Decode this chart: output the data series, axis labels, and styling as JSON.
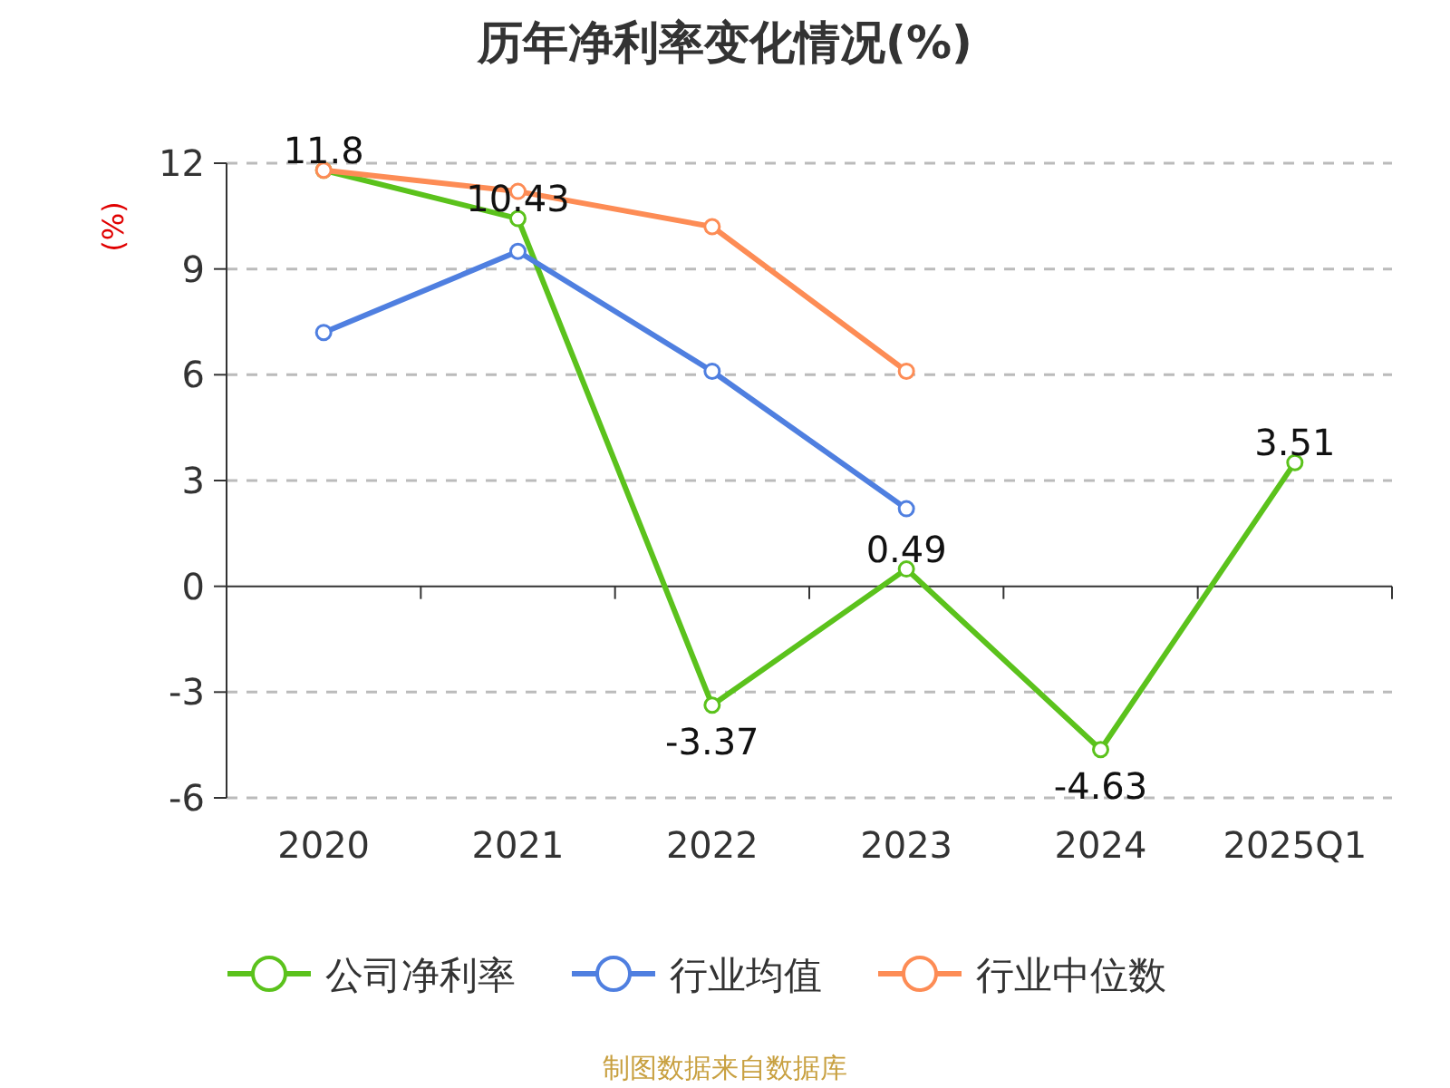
{
  "chart_data": {
    "type": "line",
    "title": "历年净利率变化情况(%)",
    "ylabel": "(%)",
    "categories": [
      "2020",
      "2021",
      "2022",
      "2023",
      "2024",
      "2025Q1"
    ],
    "series": [
      {
        "name": "公司净利率",
        "color": "#5bc21c",
        "values": [
          11.8,
          10.43,
          -3.37,
          0.49,
          -4.63,
          3.51
        ],
        "value_labels": [
          "11.8",
          "10.43",
          "-3.37",
          "0.49",
          "-4.63",
          "3.51"
        ]
      },
      {
        "name": "行业均值",
        "color": "#4f7fe0",
        "values": [
          7.2,
          9.5,
          6.1,
          2.2,
          null,
          null
        ]
      },
      {
        "name": "行业中位数",
        "color": "#fd8c55",
        "values": [
          11.8,
          11.2,
          10.2,
          6.1,
          null,
          null
        ]
      }
    ],
    "ylim": [
      -6,
      12
    ],
    "yticks": [
      -6,
      -3,
      0,
      3,
      6,
      9,
      12
    ],
    "grid": "y",
    "legend": "bottom",
    "marker": "circle",
    "line_style": "solid",
    "annotations": [
      "制图数据来自数据库"
    ]
  }
}
